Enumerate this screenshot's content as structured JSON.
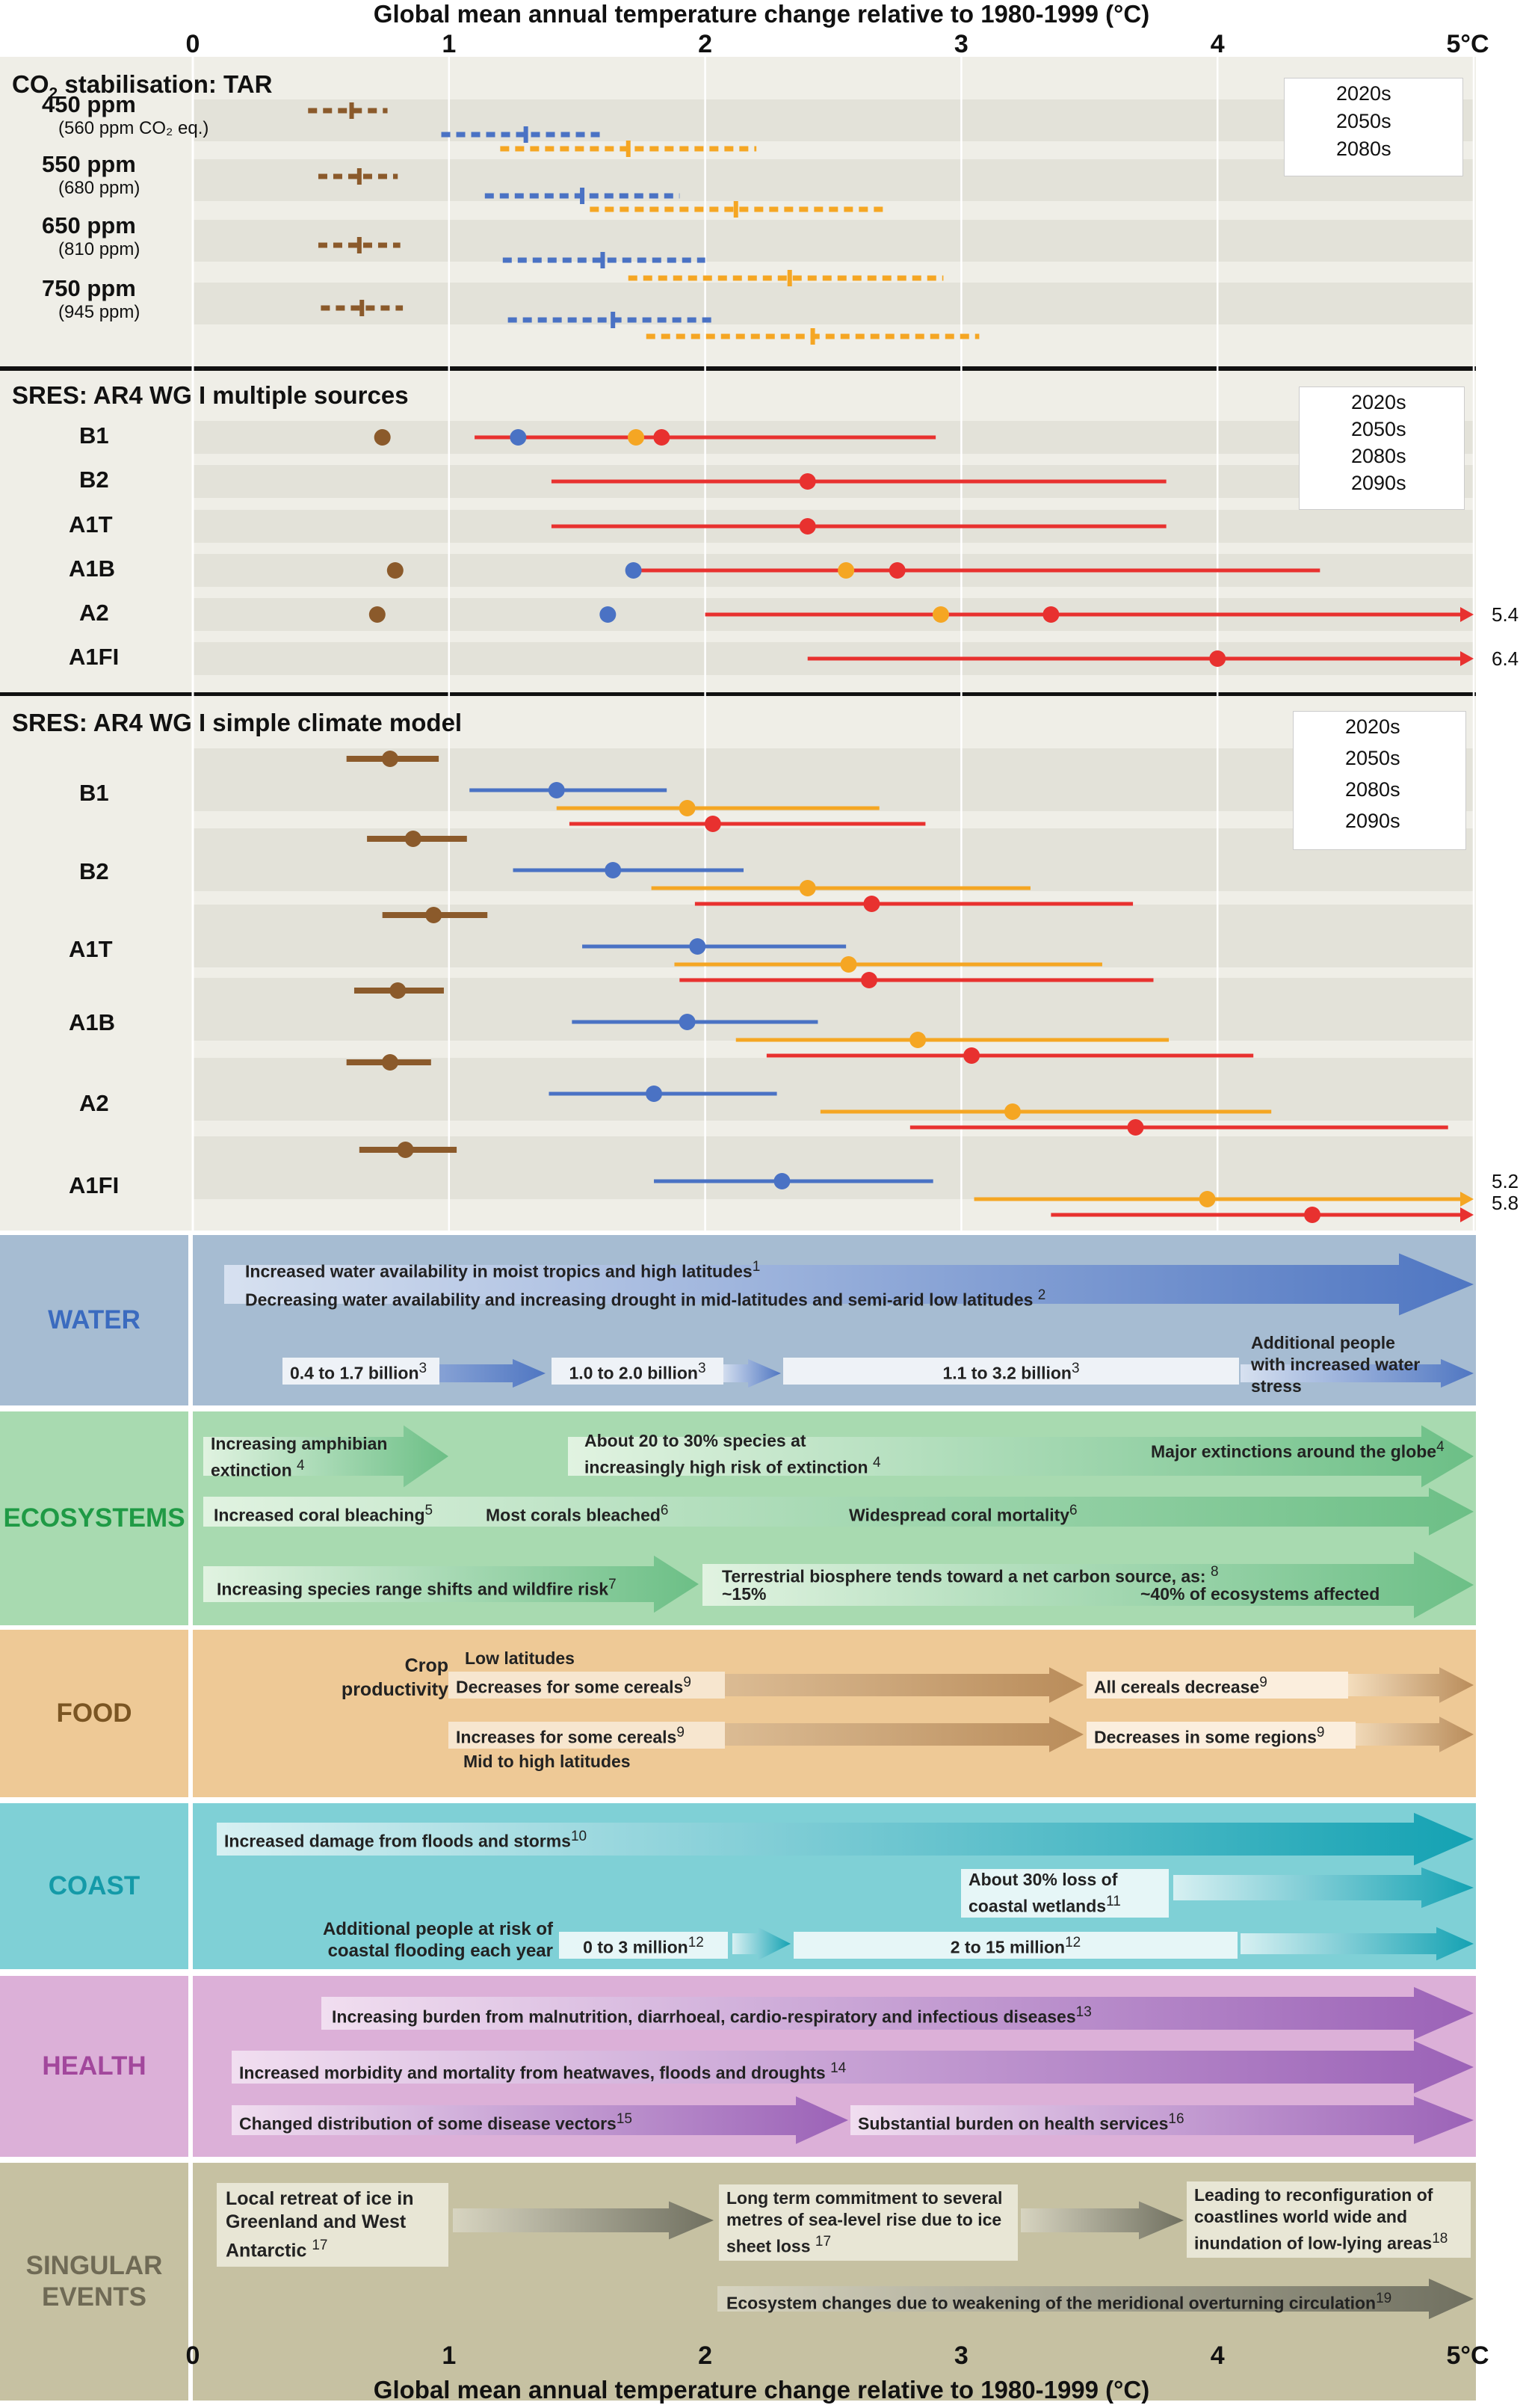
{
  "axis": {
    "title": "Global mean annual temperature change relative to 1980-1999 (°C)",
    "ticks": [
      "0",
      "1",
      "2",
      "3",
      "4",
      "5°C"
    ],
    "tick_values": [
      0,
      1,
      2,
      3,
      4,
      5
    ],
    "xlim": [
      0,
      5
    ]
  },
  "colors": {
    "2020s": "#8b5a2b",
    "2050s": "#4a72c4",
    "2080s": "#f5a623",
    "2090s": "#e8312f"
  },
  "chart_data": [
    {
      "type": "range",
      "title_prefix": "CO",
      "title_sub": "2",
      "title_rest": " stabilisation: TAR",
      "legend": [
        "2020s",
        "2050s",
        "2080s"
      ],
      "rows": [
        {
          "label": "450 ppm",
          "sublabel": "(560 ppm CO₂ eq.)",
          "series": [
            {
              "period": "2020s",
              "min": 0.45,
              "max": 0.76,
              "mid": 0.62
            },
            {
              "period": "2050s",
              "min": 0.97,
              "max": 1.61,
              "mid": 1.3
            },
            {
              "period": "2080s",
              "min": 1.2,
              "max": 2.2,
              "mid": 1.7
            }
          ]
        },
        {
          "label": "550 ppm",
          "sublabel": "(680 ppm)",
          "series": [
            {
              "period": "2020s",
              "min": 0.49,
              "max": 0.8,
              "mid": 0.65
            },
            {
              "period": "2050s",
              "min": 1.14,
              "max": 1.9,
              "mid": 1.52
            },
            {
              "period": "2080s",
              "min": 1.55,
              "max": 2.7,
              "mid": 2.12
            }
          ]
        },
        {
          "label": "650 ppm",
          "sublabel": "(810 ppm)",
          "series": [
            {
              "period": "2020s",
              "min": 0.49,
              "max": 0.81,
              "mid": 0.65
            },
            {
              "period": "2050s",
              "min": 1.21,
              "max": 2.0,
              "mid": 1.6
            },
            {
              "period": "2080s",
              "min": 1.7,
              "max": 2.93,
              "mid": 2.33
            }
          ]
        },
        {
          "label": "750 ppm",
          "sublabel": "(945 ppm)",
          "series": [
            {
              "period": "2020s",
              "min": 0.5,
              "max": 0.82,
              "mid": 0.66
            },
            {
              "period": "2050s",
              "min": 1.23,
              "max": 2.04,
              "mid": 1.64
            },
            {
              "period": "2080s",
              "min": 1.77,
              "max": 3.07,
              "mid": 2.42
            }
          ]
        }
      ]
    },
    {
      "type": "range",
      "title": "SRES: AR4 WG I multiple sources",
      "legend": [
        "2020s",
        "2050s",
        "2080s",
        "2090s"
      ],
      "rows": [
        {
          "label": "B1",
          "points": {
            "2020s": 0.74,
            "2050s": 1.27,
            "2080s": 1.73,
            "2090s": 1.83
          },
          "range_2090s": [
            1.1,
            2.9
          ]
        },
        {
          "label": "B2",
          "points": {
            "2090s": 2.4
          },
          "range_2090s": [
            1.4,
            3.8
          ]
        },
        {
          "label": "A1T",
          "points": {
            "2090s": 2.4
          },
          "range_2090s": [
            1.4,
            3.8
          ]
        },
        {
          "label": "A1B",
          "points": {
            "2020s": 0.79,
            "2050s": 1.72,
            "2080s": 2.55,
            "2090s": 2.75
          },
          "range_2090s": [
            1.7,
            4.4
          ]
        },
        {
          "label": "A2",
          "points": {
            "2020s": 0.72,
            "2050s": 1.62,
            "2080s": 2.92,
            "2090s": 3.35
          },
          "range_2090s": [
            2.0,
            5.4
          ],
          "end_label": "5.4"
        },
        {
          "label": "A1FI",
          "points": {
            "2090s": 4.0
          },
          "range_2090s": [
            2.4,
            6.4
          ],
          "end_label": "6.4"
        }
      ]
    },
    {
      "type": "range",
      "title": "SRES: AR4 WG I simple climate model",
      "legend": [
        "2020s",
        "2050s",
        "2080s",
        "2090s"
      ],
      "rows": [
        {
          "label": "B1",
          "series": [
            {
              "period": "2020s",
              "min": 0.6,
              "max": 0.96,
              "mid": 0.77
            },
            {
              "period": "2050s",
              "min": 1.08,
              "max": 1.85,
              "mid": 1.42
            },
            {
              "period": "2080s",
              "min": 1.42,
              "max": 2.68,
              "mid": 1.93
            },
            {
              "period": "2090s",
              "min": 1.47,
              "max": 2.86,
              "mid": 2.03
            }
          ]
        },
        {
          "label": "B2",
          "series": [
            {
              "period": "2020s",
              "min": 0.68,
              "max": 1.07,
              "mid": 0.86
            },
            {
              "period": "2050s",
              "min": 1.25,
              "max": 2.15,
              "mid": 1.64
            },
            {
              "period": "2080s",
              "min": 1.79,
              "max": 3.27,
              "mid": 2.4
            },
            {
              "period": "2090s",
              "min": 1.96,
              "max": 3.67,
              "mid": 2.65
            }
          ]
        },
        {
          "label": "A1T",
          "series": [
            {
              "period": "2020s",
              "min": 0.74,
              "max": 1.15,
              "mid": 0.94
            },
            {
              "period": "2050s",
              "min": 1.52,
              "max": 2.55,
              "mid": 1.97
            },
            {
              "period": "2080s",
              "min": 1.88,
              "max": 3.55,
              "mid": 2.56
            },
            {
              "period": "2090s",
              "min": 1.9,
              "max": 3.75,
              "mid": 2.64
            }
          ]
        },
        {
          "label": "A1B",
          "series": [
            {
              "period": "2020s",
              "min": 0.63,
              "max": 0.98,
              "mid": 0.8
            },
            {
              "period": "2050s",
              "min": 1.48,
              "max": 2.44,
              "mid": 1.93
            },
            {
              "period": "2080s",
              "min": 2.12,
              "max": 3.81,
              "mid": 2.83
            },
            {
              "period": "2090s",
              "min": 2.24,
              "max": 4.14,
              "mid": 3.04
            }
          ]
        },
        {
          "label": "A2",
          "series": [
            {
              "period": "2020s",
              "min": 0.6,
              "max": 0.93,
              "mid": 0.77
            },
            {
              "period": "2050s",
              "min": 1.39,
              "max": 2.28,
              "mid": 1.8
            },
            {
              "period": "2080s",
              "min": 2.45,
              "max": 4.21,
              "mid": 3.2
            },
            {
              "period": "2090s",
              "min": 2.8,
              "max": 4.9,
              "mid": 3.68
            }
          ]
        },
        {
          "label": "A1FI",
          "series": [
            {
              "period": "2020s",
              "min": 0.65,
              "max": 1.03,
              "mid": 0.83
            },
            {
              "period": "2050s",
              "min": 1.8,
              "max": 2.89,
              "mid": 2.3
            },
            {
              "period": "2080s",
              "min": 3.05,
              "max": 5.2,
              "mid": 3.96
            },
            {
              "period": "2090s",
              "min": 3.35,
              "max": 5.8,
              "mid": 4.37
            }
          ],
          "end_labels": [
            "5.2",
            "5.8"
          ]
        }
      ]
    }
  ],
  "impacts": [
    {
      "label": "WATER",
      "color": "#a6bcd2",
      "text_color": "#3b6bbf"
    },
    {
      "label": "ECOSYSTEMS",
      "color": "#a8dab0",
      "text_color": "#1f9a45"
    },
    {
      "label": "FOOD",
      "color": "#eec996",
      "text_color": "#7a5523"
    },
    {
      "label": "COAST",
      "color": "#7fd0d6",
      "text_color": "#149aa8"
    },
    {
      "label": "HEALTH",
      "color": "#dcb0d8",
      "text_color": "#a2479c"
    },
    {
      "label": "SINGULAR\nEVENTS",
      "color": "#c6c1a2",
      "text_color": "#6f6a55"
    }
  ],
  "impact_text": {
    "water": {
      "t1": "Increased water availability in moist tropics and high latitudes",
      "n1": "1",
      "t2": "Decreasing water availability and increasing drought in mid-latitudes and semi-arid low latitudes",
      "n2": "2",
      "t3": "0.4 to 1.7 billion",
      "n3": "3",
      "t4": "1.0 to 2.0 billion",
      "n4": "3",
      "t5": "1.1 to 3.2 billion",
      "n5": "3",
      "t6": "Additional people with increased water stress"
    },
    "eco": {
      "t1": "Increasing amphibian extinction",
      "n1": "4",
      "t2": "About 20 to 30% species at increasingly high risk of extinction",
      "n2": "4",
      "t3": "Major extinctions around the globe",
      "n3": "4",
      "t4": "Increased coral bleaching",
      "n4": "5",
      "t5": "Most corals bleached",
      "n5": "6",
      "t6": "Widespread coral mortality",
      "n6": "6",
      "t7": "Increasing species range shifts and wildfire risk",
      "n7": "7",
      "t8": "Terrestrial biosphere tends toward a net carbon source, as:",
      "n8": "8",
      "t9": "~15%",
      "t10": "~40% of ecosystems affected"
    },
    "food": {
      "t1": "Crop productivity",
      "t2": "Low latitudes",
      "t3": "Decreases for some cereals",
      "n3": "9",
      "t4": "All cereals decrease",
      "n4": "9",
      "t5": "Increases for some cereals",
      "n5": "9",
      "t6": "Decreases in some regions",
      "n6": "9",
      "t7": "Mid to high latitudes"
    },
    "coast": {
      "t1": "Increased damage from floods and storms",
      "n1": "10",
      "t2": "About 30% loss of coastal wetlands",
      "n2": "11",
      "t3": "Additional people at risk of coastal flooding each year",
      "t4": "0 to 3 million",
      "n4": "12",
      "t5": "2 to 15 million",
      "n5": "12"
    },
    "health": {
      "t1": "Increasing burden from malnutrition, diarrhoeal, cardio-respiratory and infectious diseases",
      "n1": "13",
      "t2": "Increased morbidity and mortality from heatwaves, floods and droughts",
      "n2": "14",
      "t3": "Changed distribution of some disease vectors",
      "n3": "15",
      "t4": "Substantial burden on health services",
      "n4": "16"
    },
    "sing": {
      "t1": "Local retreat of ice in Greenland and West Antarctic",
      "n1": "17",
      "t2": "Long term commitment to several metres of sea-level rise due to ice sheet loss",
      "n2": "17",
      "t3": "Leading to reconfiguration of coastlines world wide and inundation of low-lying areas",
      "n3": "18",
      "t4": "Ecosystem changes due to weakening of the meridional overturning circulation",
      "n4": "19"
    }
  }
}
